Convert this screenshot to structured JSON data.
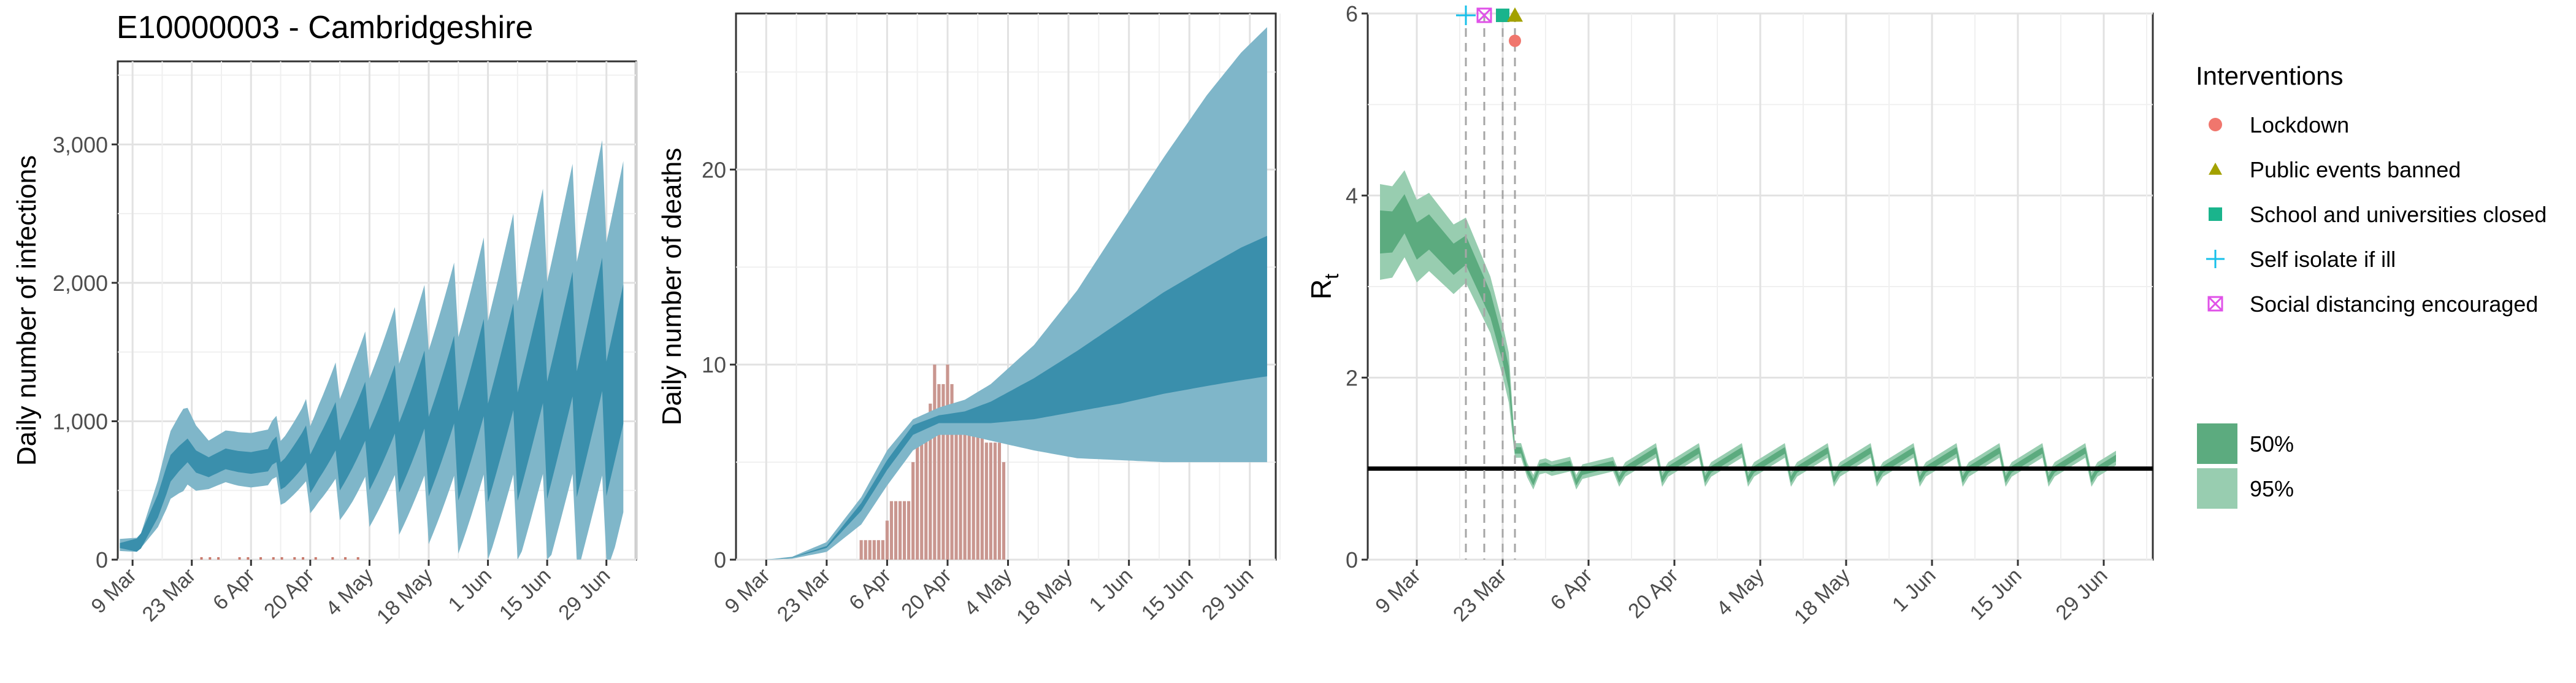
{
  "title": "E10000003 - Cambridgeshire",
  "chart_data": [
    {
      "type": "area",
      "id": "infections",
      "ylabel": "Daily number of infections",
      "xlabel": "",
      "x_ticks": [
        "9 Mar",
        "23 Mar",
        "6 Apr",
        "20 Apr",
        "4 May",
        "18 May",
        "1 Jun",
        "15 Jun",
        "29 Jun"
      ],
      "y_ticks": [
        "0",
        "1,000",
        "2,000",
        "3,000"
      ],
      "ylim": [
        0,
        3600
      ],
      "grid": true,
      "colors": {
        "band95": "#7fb6c9",
        "band50": "#3a8fac",
        "reported": "#c97b6e"
      },
      "series": [
        {
          "name": "95%",
          "kind": "ribbon"
        },
        {
          "name": "50%",
          "kind": "ribbon"
        }
      ]
    },
    {
      "type": "area",
      "id": "deaths",
      "ylabel": "Daily number of deaths",
      "xlabel": "",
      "x_ticks": [
        "9 Mar",
        "23 Mar",
        "6 Apr",
        "20 Apr",
        "4 May",
        "18 May",
        "1 Jun",
        "15 Jun",
        "29 Jun"
      ],
      "y_ticks": [
        "0",
        "10",
        "20"
      ],
      "ylim": [
        0,
        28
      ],
      "grid": true,
      "colors": {
        "band95": "#7fb6c9",
        "band50": "#3a8fac",
        "reported": "#c9968f"
      },
      "reported_deaths": [
        0,
        0,
        0,
        0,
        0,
        0,
        0,
        0,
        0,
        0,
        0,
        0,
        0,
        0,
        0,
        0,
        0,
        0,
        0,
        0,
        0,
        0,
        0,
        0,
        0,
        0,
        0,
        0,
        0,
        0,
        1,
        1,
        1,
        1,
        1,
        1,
        2,
        3,
        3,
        3,
        3,
        3,
        5,
        6,
        7,
        7,
        8,
        10,
        9,
        9,
        10,
        9,
        8,
        8,
        7,
        7,
        7,
        7,
        7,
        6,
        6,
        6,
        6,
        5
      ]
    },
    {
      "type": "area",
      "id": "rt",
      "ylabel": "R",
      "ylabel_sub": "t",
      "xlabel": "",
      "x_ticks": [
        "9 Mar",
        "23 Mar",
        "6 Apr",
        "20 Apr",
        "4 May",
        "18 May",
        "1 Jun",
        "15 Jun",
        "29 Jun"
      ],
      "y_ticks": [
        "0",
        "2",
        "4",
        "6"
      ],
      "ylim": [
        0,
        6
      ],
      "reference_line": 1,
      "grid": true,
      "colors": {
        "band95": "#98cdb0",
        "band50": "#5cab7f"
      },
      "interventions": [
        {
          "name": "Self isolate if ill",
          "day": 16,
          "color": "#17c0ea",
          "shape": "plus"
        },
        {
          "name": "Social distancing encouraged",
          "day": 19,
          "color": "#e052e8",
          "shape": "square-x"
        },
        {
          "name": "School and universities closed",
          "day": 22,
          "color": "#1ab48c",
          "shape": "square"
        },
        {
          "name": "Public events banned",
          "day": 24,
          "color": "#a3a100",
          "shape": "triangle"
        },
        {
          "name": "Lockdown",
          "day": 24,
          "color": "#f0766d",
          "shape": "circle"
        }
      ]
    }
  ],
  "legend": {
    "interventions_title": "Interventions",
    "interventions": [
      {
        "label": "Lockdown",
        "shape": "circle",
        "color": "#f0766d"
      },
      {
        "label": "Public events banned",
        "shape": "triangle",
        "color": "#a3a100"
      },
      {
        "label": "School and universities closed",
        "shape": "square",
        "color": "#1ab48c"
      },
      {
        "label": "Self isolate if ill",
        "shape": "plus",
        "color": "#17c0ea"
      },
      {
        "label": "Social distancing encouraged",
        "shape": "square-x",
        "color": "#e052e8"
      }
    ],
    "ci": [
      {
        "label": "50%",
        "color": "#5cab7f"
      },
      {
        "label": "95%",
        "color": "#98cdb0"
      }
    ]
  }
}
